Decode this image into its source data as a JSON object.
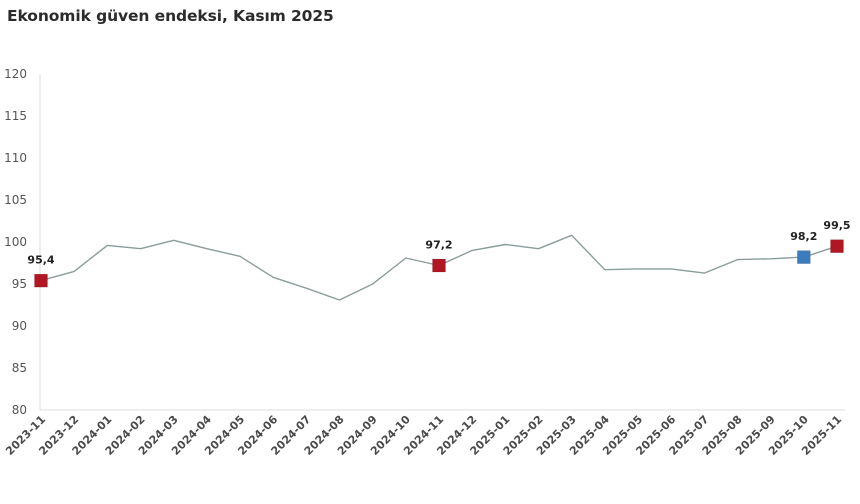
{
  "header": {
    "title": "Ekonomik güven endeksi, Kasım 2025"
  },
  "colors": {
    "line": "#8c9b9b",
    "highlight_red": "#b01722",
    "highlight_blue": "#3b7cbc",
    "axis": "#e3e3e3"
  },
  "chart_data": {
    "type": "line",
    "title": "Ekonomik güven endeksi, Kasım 2025",
    "xlabel": "",
    "ylabel": "",
    "ylim": [
      80,
      120
    ],
    "yticks": [
      80,
      85,
      90,
      95,
      100,
      105,
      110,
      115,
      120
    ],
    "grid": false,
    "legend": null,
    "categories": [
      "2023-11",
      "2023-12",
      "2024-01",
      "2024-02",
      "2024-03",
      "2024-04",
      "2024-05",
      "2024-06",
      "2024-07",
      "2024-08",
      "2024-09",
      "2024-10",
      "2024-11",
      "2024-12",
      "2025-01",
      "2025-02",
      "2025-03",
      "2025-04",
      "2025-05",
      "2025-06",
      "2025-07",
      "2025-08",
      "2025-09",
      "2025-10",
      "2025-11"
    ],
    "series": [
      {
        "name": "Ekonomik güven endeksi",
        "values": [
          95.4,
          96.5,
          99.6,
          99.2,
          100.2,
          99.2,
          98.3,
          95.8,
          94.5,
          93.1,
          95.0,
          98.1,
          97.2,
          99.0,
          99.7,
          99.2,
          100.8,
          96.7,
          96.8,
          96.8,
          96.3,
          97.9,
          98.0,
          98.2,
          99.5
        ]
      }
    ],
    "annotations": [
      {
        "index": 0,
        "label": "95,4",
        "marker_color": "#b01722"
      },
      {
        "index": 12,
        "label": "97,2",
        "marker_color": "#b01722"
      },
      {
        "index": 23,
        "label": "98,2",
        "marker_color": "#3b7cbc"
      },
      {
        "index": 24,
        "label": "99,5",
        "marker_color": "#b01722"
      }
    ]
  }
}
